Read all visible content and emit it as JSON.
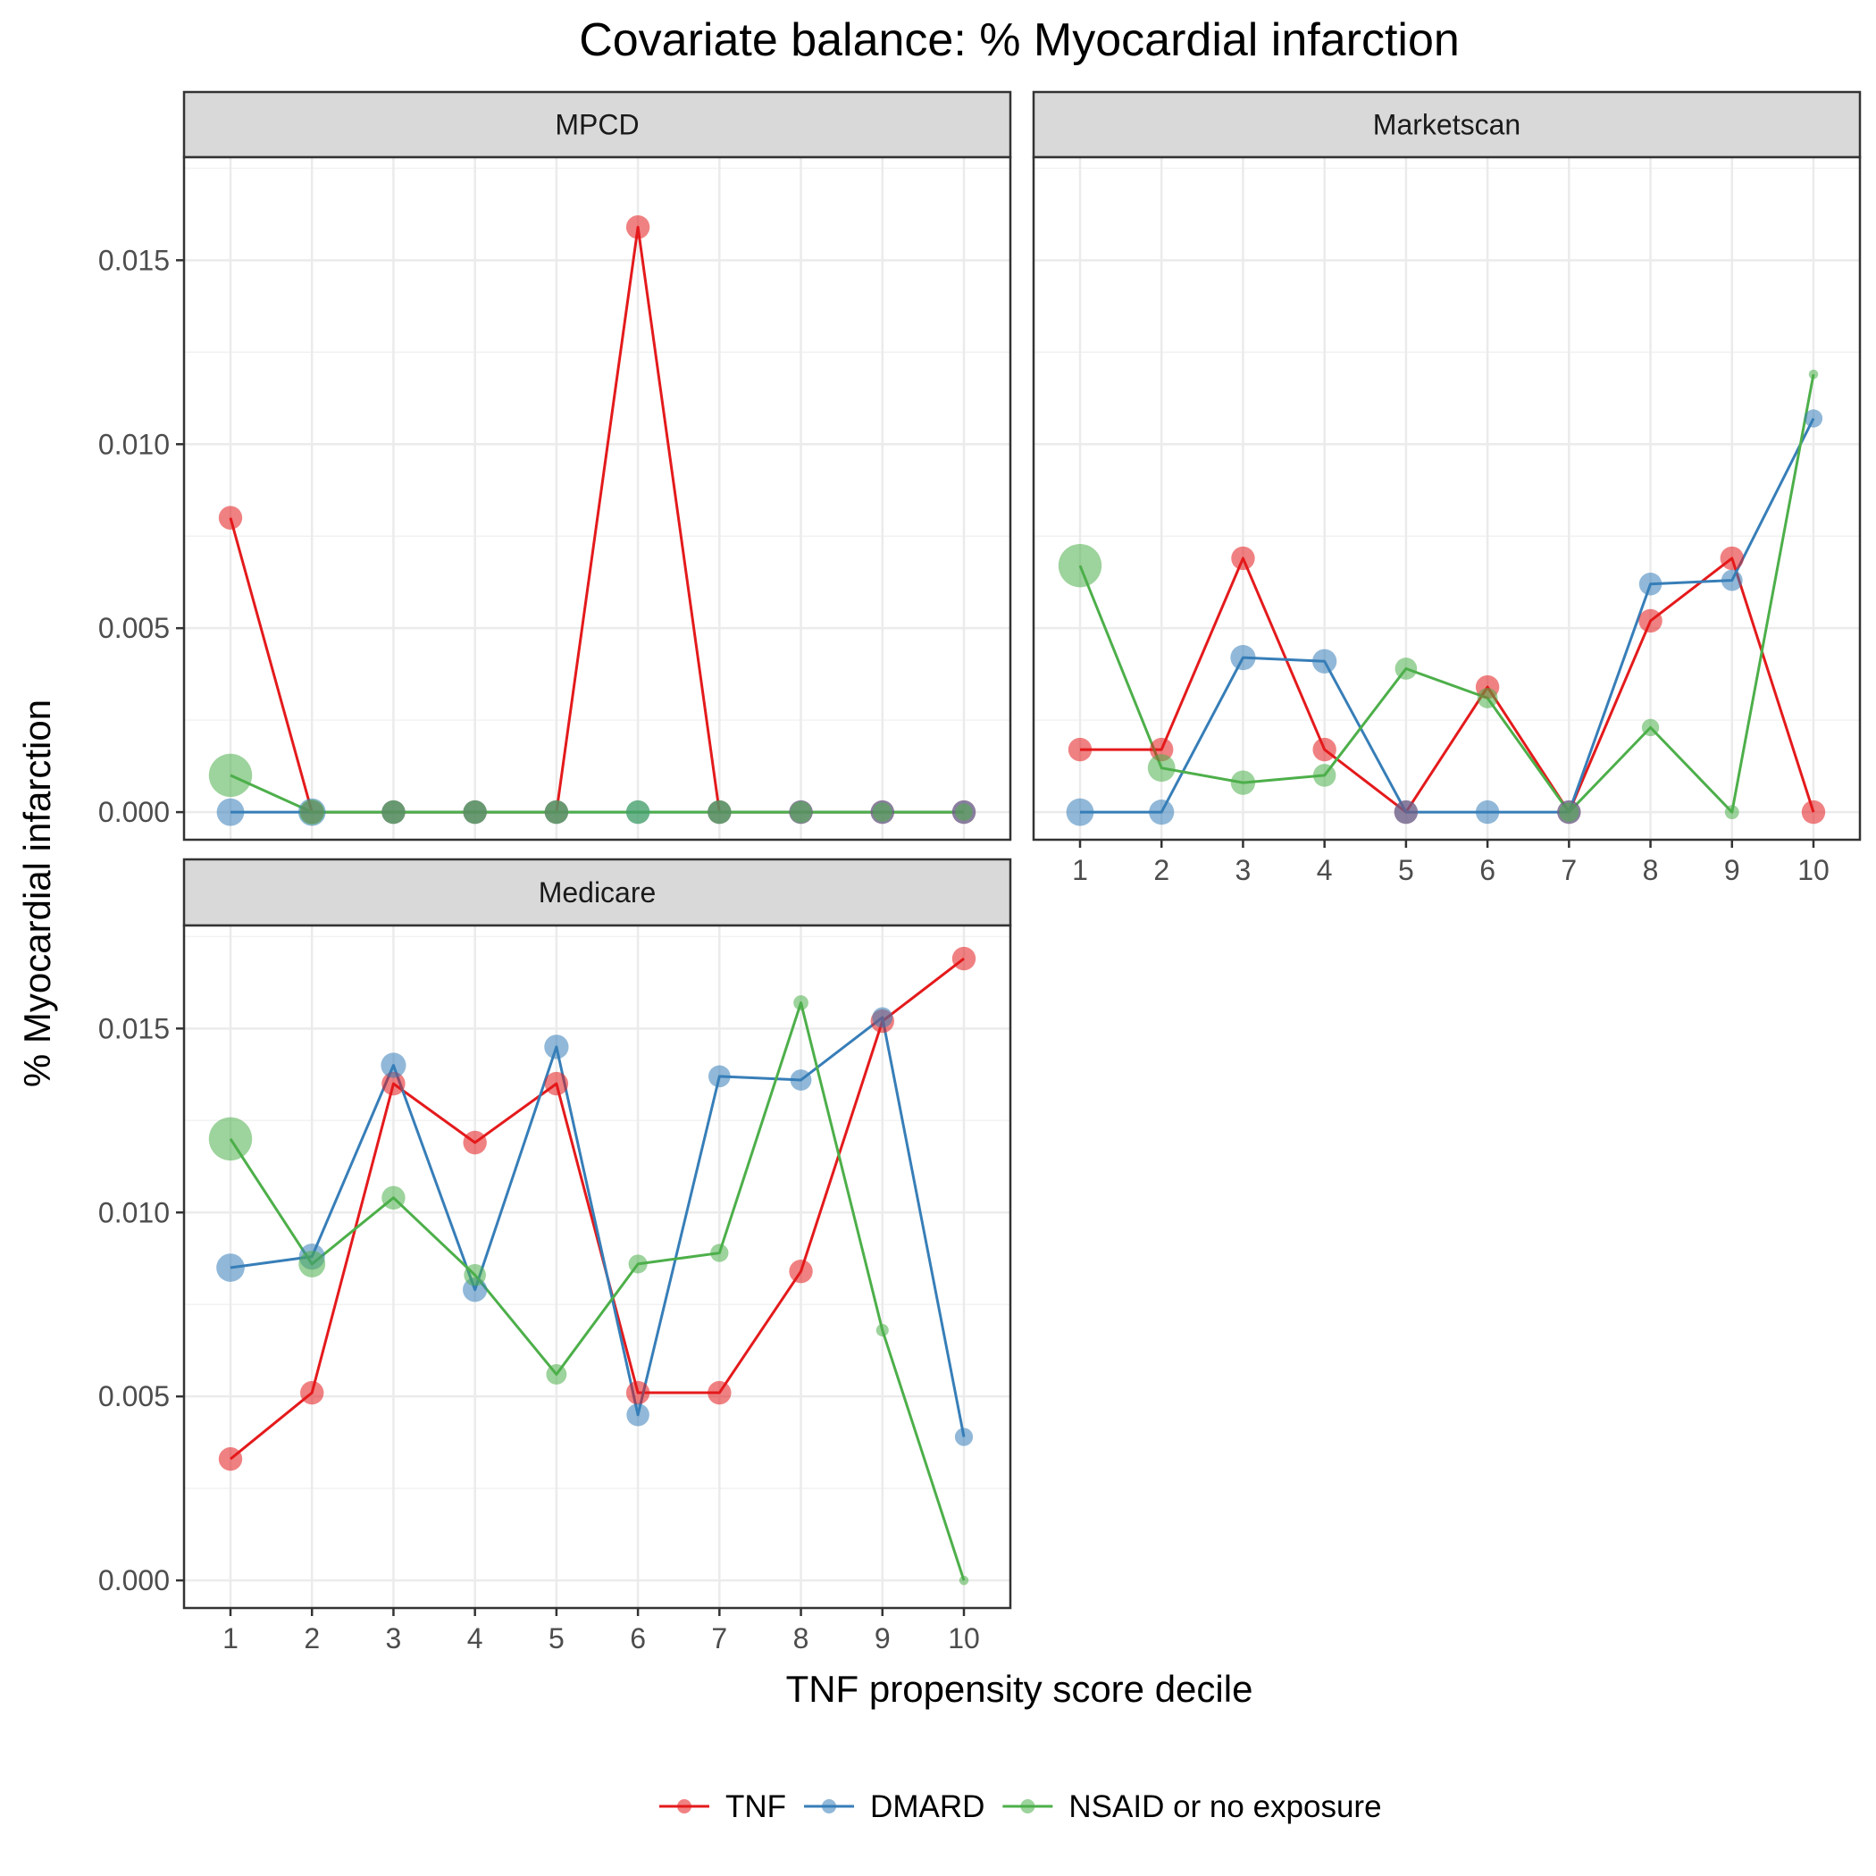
{
  "chart_data": {
    "type": "line",
    "title": "Covariate balance: % Myocardial infarction",
    "xlabel": "TNF propensity score decile",
    "ylabel": "% Myocardial infarction",
    "x": [
      1,
      2,
      3,
      4,
      5,
      6,
      7,
      8,
      9,
      10
    ],
    "x_tick_labels": [
      "1",
      "2",
      "3",
      "4",
      "5",
      "6",
      "7",
      "8",
      "9",
      "10"
    ],
    "ylim": [
      -0.00075,
      0.0178
    ],
    "y_ticks": [
      0.0,
      0.005,
      0.01,
      0.015
    ],
    "y_tick_labels": [
      "0.000",
      "0.005",
      "0.010",
      "0.015"
    ],
    "grid": true,
    "legend_position": "bottom",
    "legend": [
      {
        "name": "TNF",
        "color": "#E41A1C"
      },
      {
        "name": "DMARD",
        "color": "#377EB8"
      },
      {
        "name": "NSAID or no exposure",
        "color": "#4DAF4A"
      }
    ],
    "panels": [
      {
        "name": "MPCD",
        "series": [
          {
            "name": "TNF",
            "values": [
              0.008,
              0.0,
              0.0,
              0.0,
              0.0,
              0.0159,
              0.0,
              0.0,
              0.0,
              0.0
            ],
            "point_sizes": [
              3,
              3,
              3,
              3,
              3,
              3,
              3,
              3,
              3,
              3
            ]
          },
          {
            "name": "DMARD",
            "values": [
              0.0,
              0.0,
              0.0,
              0.0,
              0.0,
              0.0,
              0.0,
              0.0,
              0.0,
              0.0
            ],
            "point_sizes": [
              3.5,
              3.5,
              3,
              3,
              3,
              3,
              3,
              3,
              3,
              3
            ]
          },
          {
            "name": "NSAID or no exposure",
            "values": [
              0.001,
              0.0,
              0.0,
              0.0,
              0.0,
              0.0,
              0.0,
              0.0,
              0.0,
              0.0
            ],
            "point_sizes": [
              5.5,
              3.2,
              3,
              3,
              3,
              3,
              3,
              2.8,
              2.5,
              2.2
            ]
          }
        ]
      },
      {
        "name": "Marketscan",
        "series": [
          {
            "name": "TNF",
            "values": [
              0.0017,
              0.0017,
              0.0069,
              0.0017,
              0.0,
              0.0034,
              0.0,
              0.0052,
              0.0069,
              0.0
            ],
            "point_sizes": [
              3,
              3,
              3,
              3,
              3,
              3,
              3,
              3,
              3,
              3
            ]
          },
          {
            "name": "DMARD",
            "values": [
              0.0,
              0.0,
              0.0042,
              0.0041,
              0.0,
              0.0,
              0.0,
              0.0062,
              0.0063,
              0.0107
            ],
            "point_sizes": [
              3.5,
              3.2,
              3.2,
              3.1,
              3,
              3,
              3,
              2.9,
              2.7,
              2.3
            ]
          },
          {
            "name": "NSAID or no exposure",
            "values": [
              0.0067,
              0.0012,
              0.0008,
              0.001,
              0.0039,
              0.0031,
              0.0,
              0.0023,
              0.0,
              0.0119
            ],
            "point_sizes": [
              5.5,
              3.5,
              3.1,
              2.9,
              2.8,
              2.6,
              2.5,
              2.2,
              1.8,
              1.2
            ]
          }
        ]
      },
      {
        "name": "Medicare",
        "series": [
          {
            "name": "TNF",
            "values": [
              0.0033,
              0.0051,
              0.0135,
              0.0119,
              0.0135,
              0.0051,
              0.0051,
              0.0084,
              0.0152,
              0.0169
            ],
            "point_sizes": [
              3,
              3,
              3,
              3,
              3,
              3,
              3,
              3,
              3,
              3
            ]
          },
          {
            "name": "DMARD",
            "values": [
              0.0085,
              0.0088,
              0.014,
              0.0079,
              0.0145,
              0.0045,
              0.0137,
              0.0136,
              0.0153,
              0.0039
            ],
            "point_sizes": [
              3.6,
              3.3,
              3.2,
              3.1,
              3.1,
              2.9,
              2.8,
              2.7,
              2.6,
              2.3
            ]
          },
          {
            "name": "NSAID or no exposure",
            "values": [
              0.012,
              0.0086,
              0.0104,
              0.0083,
              0.0056,
              0.0086,
              0.0089,
              0.0157,
              0.0068,
              0.0
            ],
            "point_sizes": [
              5.5,
              3.4,
              3.0,
              2.8,
              2.6,
              2.4,
              2.3,
              1.9,
              1.6,
              1.2
            ]
          }
        ]
      }
    ]
  }
}
